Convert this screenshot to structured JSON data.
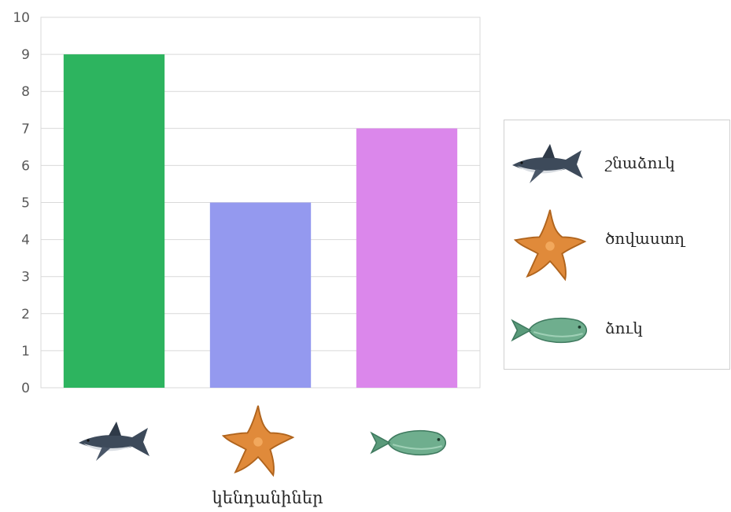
{
  "chart_data": {
    "type": "bar",
    "categories": [
      "շնաձուկ",
      "ծովաստղ",
      "ձուկ"
    ],
    "values": [
      9,
      5,
      7
    ],
    "colors": [
      "#2db45f",
      "#9499ef",
      "#db87eb"
    ],
    "category_icons": [
      "shark-icon",
      "starfish-icon",
      "fish-icon"
    ],
    "xlabel": "կենդանիներ",
    "ylabel": "",
    "ylim": [
      0,
      10
    ],
    "yticks": [
      "0",
      "1",
      "2",
      "3",
      "4",
      "5",
      "6",
      "7",
      "8",
      "9",
      "10"
    ],
    "grid": true,
    "legend_placement": "right"
  },
  "legend": {
    "items": [
      {
        "label": "շնաձուկ",
        "icon": "shark-icon"
      },
      {
        "label": "ծովաստղ",
        "icon": "starfish-icon"
      },
      {
        "label": "ձուկ",
        "icon": "fish-icon"
      }
    ]
  }
}
